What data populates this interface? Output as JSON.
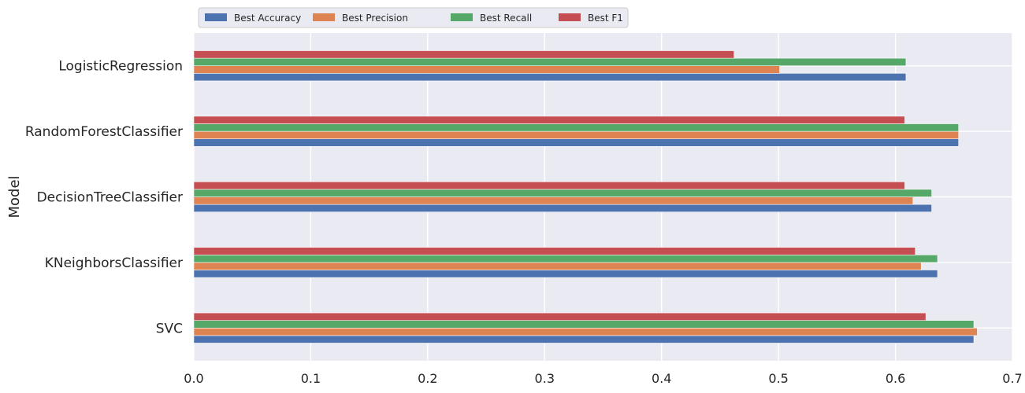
{
  "chart_data": {
    "type": "bar",
    "orientation": "horizontal",
    "title": "",
    "xlabel": "",
    "ylabel": "Model",
    "categories": [
      "SVC",
      "KNeighborsClassifier",
      "DecisionTreeClassifier",
      "RandomForestClassifier",
      "LogisticRegression"
    ],
    "series": [
      {
        "name": "Best Accuracy",
        "color": "#4c72b0",
        "values": [
          0.667,
          0.636,
          0.631,
          0.654,
          0.609
        ]
      },
      {
        "name": "Best Precision",
        "color": "#dd8452",
        "values": [
          0.67,
          0.622,
          0.615,
          0.654,
          0.501
        ]
      },
      {
        "name": "Best Recall",
        "color": "#55a868",
        "values": [
          0.667,
          0.636,
          0.631,
          0.654,
          0.609
        ]
      },
      {
        "name": "Best F1",
        "color": "#c44e52",
        "values": [
          0.626,
          0.617,
          0.608,
          0.608,
          0.462
        ]
      }
    ],
    "xlim": [
      0,
      0.7
    ],
    "xticks": [
      "0.0",
      "0.1",
      "0.2",
      "0.3",
      "0.4",
      "0.5",
      "0.6",
      "0.7"
    ],
    "grid": true,
    "background": "#eaeaf2",
    "legend_position": "top-left outside, horizontal"
  }
}
